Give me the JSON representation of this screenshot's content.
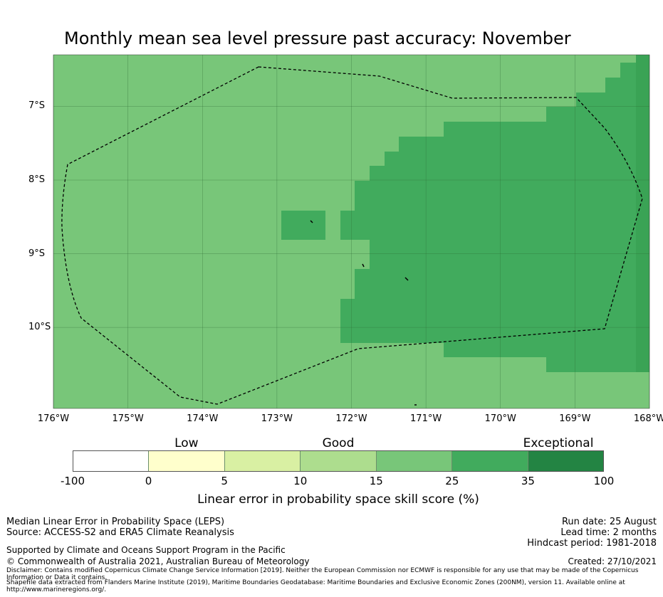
{
  "title": "Monthly mean sea level pressure past accuracy: November",
  "map": {
    "lon_range": [
      -176,
      -168
    ],
    "lat_range": [
      -11.1,
      -6.3
    ],
    "lat_ticks": [
      {
        "value": -7,
        "label": "7°S"
      },
      {
        "value": -8,
        "label": "8°S"
      },
      {
        "value": -9,
        "label": "9°S"
      },
      {
        "value": -10,
        "label": "10°S"
      }
    ],
    "lon_ticks": [
      {
        "value": -176,
        "label": "176°W"
      },
      {
        "value": -175,
        "label": "175°W"
      },
      {
        "value": -174,
        "label": "174°W"
      },
      {
        "value": -173,
        "label": "173°W"
      },
      {
        "value": -172,
        "label": "172°W"
      },
      {
        "value": -171,
        "label": "171°W"
      },
      {
        "value": -170,
        "label": "170°W"
      },
      {
        "value": -169,
        "label": "169°W"
      },
      {
        "value": -168,
        "label": "168°W"
      }
    ],
    "background_color": "#78c679",
    "high_skill_color": "#41ab5d",
    "boundary_style": "dashed"
  },
  "colorbar": {
    "category_labels": [
      {
        "text": "Low",
        "at_tick": 1.5
      },
      {
        "text": "Good",
        "at_tick": 3.5
      },
      {
        "text": "Exceptional",
        "at_tick": 6.4
      }
    ],
    "ticks": [
      "-100",
      "0",
      "5",
      "10",
      "15",
      "25",
      "35",
      "100"
    ],
    "colors": [
      "#ffffff",
      "#ffffcc",
      "#d9f0a3",
      "#addd8e",
      "#78c679",
      "#41ab5d",
      "#238443"
    ],
    "label": "Linear error in probability space skill score (%)"
  },
  "info_left": {
    "line1": "Median Linear Error in Probability Space (LEPS)",
    "line2": "Source: ACCESS-S2 and ERA5 Climate Reanalysis",
    "line3": "Supported by Climate and Oceans Support Program in the Pacific",
    "line4": "© Commonwealth of Australia 2021, Australian Bureau of Meteorology"
  },
  "info_right": {
    "run_date": "Run date: 25 August",
    "lead_time": "Lead time: 2 months",
    "hindcast": "Hindcast period: 1981-2018",
    "created": "Created: 27/10/2021"
  },
  "disclaimer": "Disclaimer: Contains modified Copernicus Climate Change Service Information [2019]. Neither the European Commission nor ECMWF is responsible for any use that may be made of the Copernicus Information or Data it contains.",
  "shapefile": "Shapefile data extracted from Flanders Marine Institute (2019), Maritime Boundaries Geodatabase: Maritime Boundaries and Exclusive Economic Zones (200NM), version 11. Available online at http://www.marineregions.org/."
}
